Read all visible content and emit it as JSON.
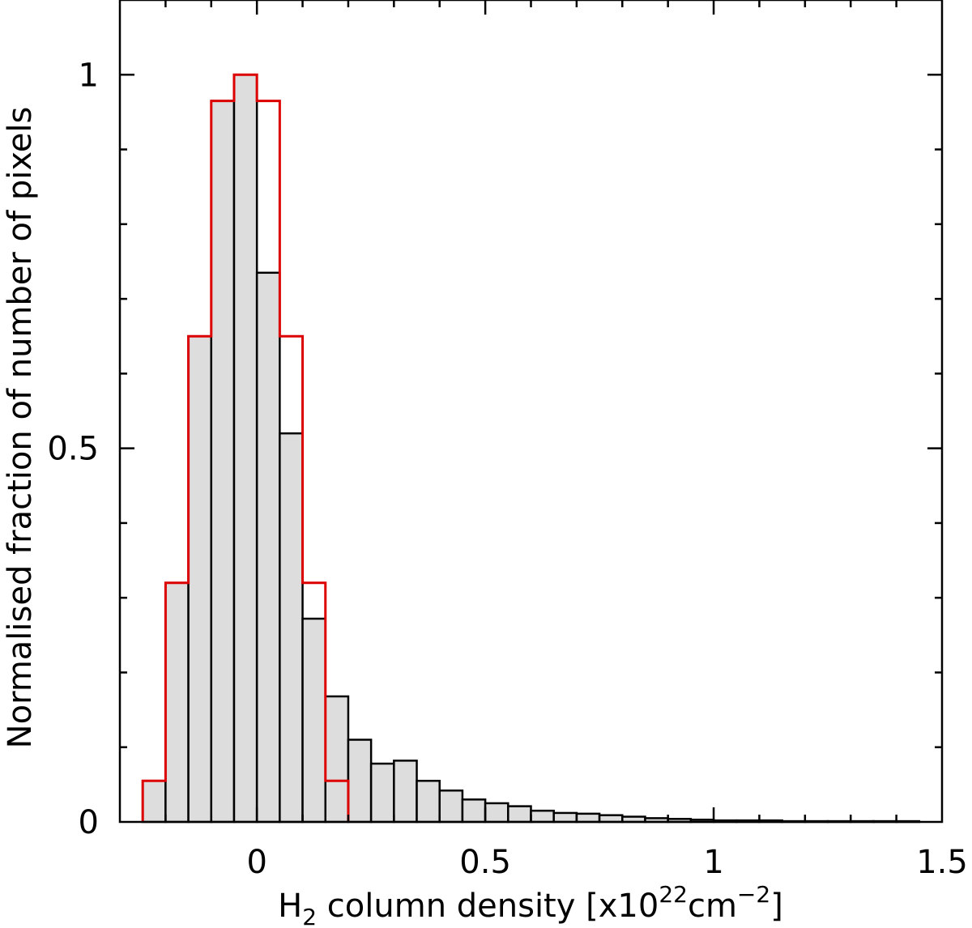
{
  "chart_data": {
    "type": "bar",
    "title": "",
    "xlabel": {
      "prefix": "H",
      "prefix_sub": "2",
      "text": " column density [x10",
      "exp1": "22",
      "mid": "cm",
      "exp2": "−2",
      "suffix": "]"
    },
    "ylabel": "Normalised fraction of number of pixels",
    "xlim": [
      -0.3,
      1.5
    ],
    "ylim": [
      0,
      1.1
    ],
    "bin_width": 0.05,
    "x_ticks": [
      {
        "value": 0,
        "label": "0"
      },
      {
        "value": 0.5,
        "label": "0.5"
      },
      {
        "value": 1,
        "label": "1"
      },
      {
        "value": 1.5,
        "label": "1.5"
      }
    ],
    "y_ticks": [
      {
        "value": 0,
        "label": "0"
      },
      {
        "value": 0.5,
        "label": "0.5"
      },
      {
        "value": 1,
        "label": "1"
      }
    ],
    "x_minor_step": 0.1,
    "y_minor_step": 0.1,
    "grid": false,
    "series": [
      {
        "style": "filled-histogram",
        "fill": "#dddddd",
        "stroke": "#000000",
        "bins": [
          {
            "x": -0.225,
            "y": 0.055
          },
          {
            "x": -0.175,
            "y": 0.32
          },
          {
            "x": -0.125,
            "y": 0.65
          },
          {
            "x": -0.075,
            "y": 0.965
          },
          {
            "x": -0.025,
            "y": 1.0
          },
          {
            "x": 0.025,
            "y": 0.735
          },
          {
            "x": 0.075,
            "y": 0.52
          },
          {
            "x": 0.125,
            "y": 0.272
          },
          {
            "x": 0.175,
            "y": 0.168
          },
          {
            "x": 0.225,
            "y": 0.11
          },
          {
            "x": 0.275,
            "y": 0.078
          },
          {
            "x": 0.325,
            "y": 0.082
          },
          {
            "x": 0.375,
            "y": 0.055
          },
          {
            "x": 0.425,
            "y": 0.042
          },
          {
            "x": 0.475,
            "y": 0.03
          },
          {
            "x": 0.525,
            "y": 0.025
          },
          {
            "x": 0.575,
            "y": 0.021
          },
          {
            "x": 0.625,
            "y": 0.015
          },
          {
            "x": 0.675,
            "y": 0.012
          },
          {
            "x": 0.725,
            "y": 0.011
          },
          {
            "x": 0.775,
            "y": 0.009
          },
          {
            "x": 0.825,
            "y": 0.007
          },
          {
            "x": 0.875,
            "y": 0.005
          },
          {
            "x": 0.925,
            "y": 0.004
          },
          {
            "x": 0.975,
            "y": 0.003
          },
          {
            "x": 1.025,
            "y": 0.002
          },
          {
            "x": 1.075,
            "y": 0.002
          },
          {
            "x": 1.125,
            "y": 0.002
          },
          {
            "x": 1.175,
            "y": 0.001
          },
          {
            "x": 1.225,
            "y": 0.001
          },
          {
            "x": 1.275,
            "y": 0.001
          },
          {
            "x": 1.325,
            "y": 0.001
          },
          {
            "x": 1.375,
            "y": 0.001
          },
          {
            "x": 1.425,
            "y": 0.001
          }
        ]
      },
      {
        "style": "step-outline",
        "stroke": "#dd0000",
        "bins": [
          {
            "x": -0.225,
            "y": 0.055
          },
          {
            "x": -0.175,
            "y": 0.32
          },
          {
            "x": -0.125,
            "y": 0.65
          },
          {
            "x": -0.075,
            "y": 0.965
          },
          {
            "x": -0.025,
            "y": 1.0
          },
          {
            "x": 0.025,
            "y": 0.965
          },
          {
            "x": 0.075,
            "y": 0.65
          },
          {
            "x": 0.125,
            "y": 0.32
          },
          {
            "x": 0.175,
            "y": 0.055
          }
        ]
      }
    ]
  }
}
